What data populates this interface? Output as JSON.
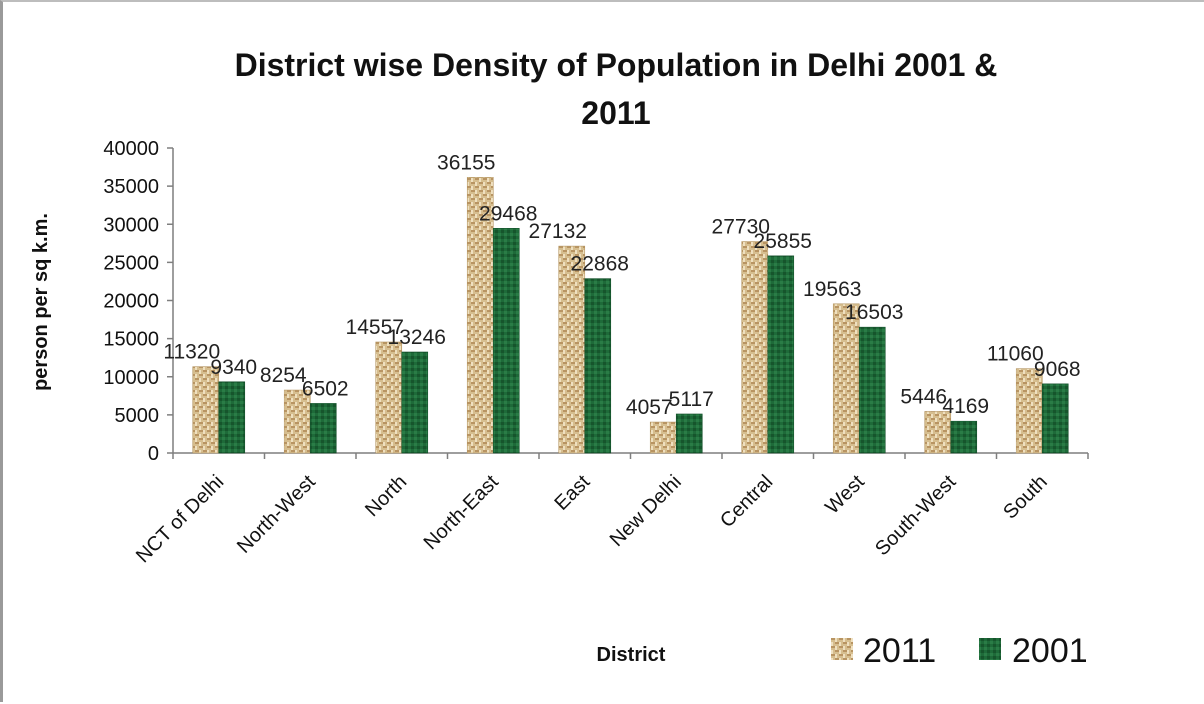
{
  "chart_data": {
    "type": "bar",
    "title_line1": "District wise Density of Population in Delhi 2001 &",
    "title_line2": "2011",
    "ylabel": "person per sq k.m.",
    "xlabel": "District",
    "ylim": [
      0,
      40000
    ],
    "yticks": [
      "0",
      "5000",
      "10000",
      "15000",
      "20000",
      "25000",
      "30000",
      "35000",
      "40000"
    ],
    "grid": false,
    "legend_position": "bottom-right",
    "categories": [
      "NCT of Delhi",
      "North-West",
      "North",
      "North-East",
      "East",
      "New Delhi",
      "Central",
      "West",
      "South-West",
      "South"
    ],
    "series": [
      {
        "name": "2011",
        "color": "#d2b98a",
        "pattern": "woven-tan",
        "values": [
          11320,
          8254,
          14557,
          36155,
          27132,
          4057,
          27730,
          19563,
          5446,
          11060
        ]
      },
      {
        "name": "2001",
        "color": "#1f6b3a",
        "pattern": "textured-green",
        "values": [
          9340,
          6502,
          13246,
          29468,
          22868,
          5117,
          25855,
          16503,
          4169,
          9068
        ]
      }
    ]
  }
}
